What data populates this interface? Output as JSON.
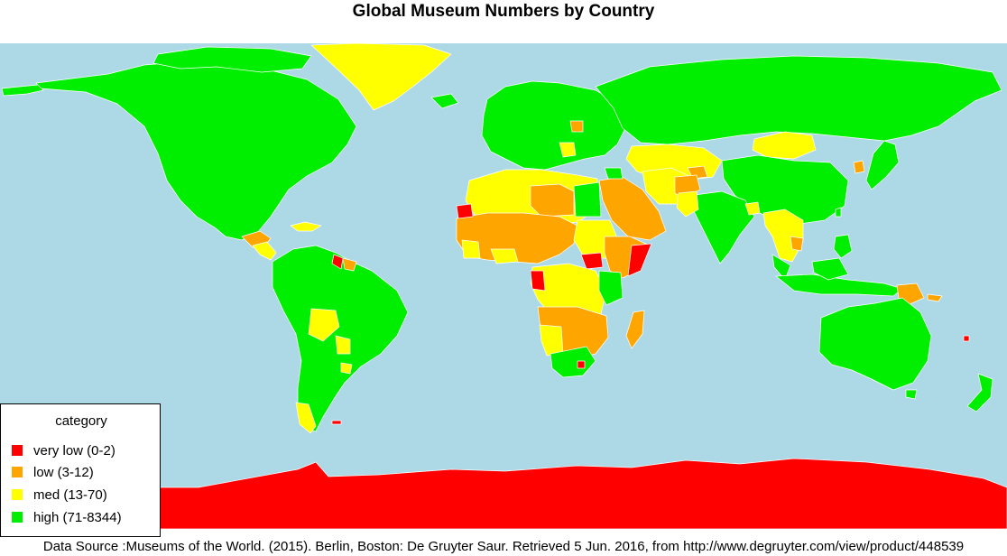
{
  "title": "Global Museum Numbers by Country",
  "legend": {
    "title": "category",
    "items": [
      {
        "label": "very low (0-2)",
        "color": "#ff0000"
      },
      {
        "label": "low (3-12)",
        "color": "#ffa500"
      },
      {
        "label": "med (13-70)",
        "color": "#ffff00"
      },
      {
        "label": "high (71-8344)",
        "color": "#00ee00"
      }
    ]
  },
  "colors": {
    "ocean": "#add8e6",
    "border": "#ffffff"
  },
  "source": "Data Source :Museums of the World. (2015). Berlin, Boston: De Gruyter Saur. Retrieved 5 Jun. 2016, from http://www.degruyter.com/view/product/448539"
}
